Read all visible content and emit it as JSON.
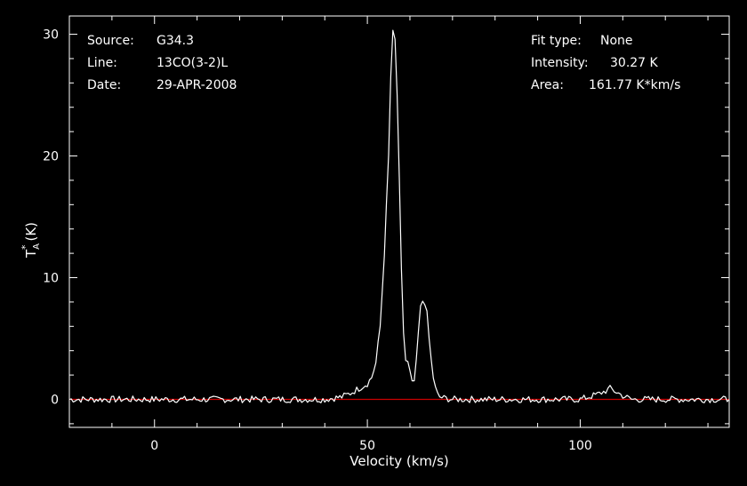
{
  "info_left": [
    {
      "key": "Source:",
      "value": "G34.3"
    },
    {
      "key": "Line:",
      "value": "13CO(3-2)L"
    },
    {
      "key": "Date:",
      "value": "29-APR-2008"
    }
  ],
  "info_right": [
    {
      "key": "Fit type:",
      "value": "None"
    },
    {
      "key": "Intensity:",
      "value": "30.27 K"
    },
    {
      "key": "Area:",
      "value": "161.77 K*km/s"
    }
  ],
  "chart_data": {
    "type": "line",
    "xlabel": "Velocity (km/s)",
    "ylabel_main": "T",
    "ylabel_sup": "*",
    "ylabel_sub": "A",
    "ylabel_unit": "(K)",
    "xlim": [
      -20,
      135
    ],
    "ylim": [
      -2.3,
      31.5
    ],
    "xticks": [
      0,
      50,
      100
    ],
    "yticks": [
      0,
      10,
      20,
      30
    ],
    "grid": false,
    "series": [
      {
        "color": "#ffffff",
        "x": [
          -20,
          40,
          44,
          46,
          48,
          50,
          51,
          52,
          53,
          54,
          55,
          55.5,
          56,
          56.5,
          57,
          57.5,
          58,
          58.5,
          59,
          59.5,
          60,
          60.5,
          61,
          61.5,
          62,
          62.5,
          63,
          63.5,
          64,
          64.5,
          65,
          65.5,
          66,
          66.5,
          67,
          68,
          70,
          100,
          104,
          106,
          107,
          108,
          110,
          112,
          135
        ],
        "y": [
          0,
          0,
          0.2,
          0.5,
          0.9,
          1.3,
          1.8,
          3.0,
          6.0,
          12.0,
          20.0,
          26.5,
          30.1,
          29.5,
          25.0,
          18.0,
          10.5,
          5.5,
          3.2,
          3.0,
          2.2,
          1.3,
          1.5,
          3.0,
          5.5,
          7.5,
          8.1,
          8.0,
          7.0,
          5.0,
          3.2,
          1.8,
          0.9,
          0.4,
          0.2,
          0.1,
          0,
          0,
          0.4,
          0.7,
          0.9,
          0.7,
          0.3,
          0,
          0
        ]
      },
      {
        "color": "#cc0000",
        "x": [
          -20,
          135
        ],
        "y": [
          0,
          0
        ]
      }
    ]
  }
}
